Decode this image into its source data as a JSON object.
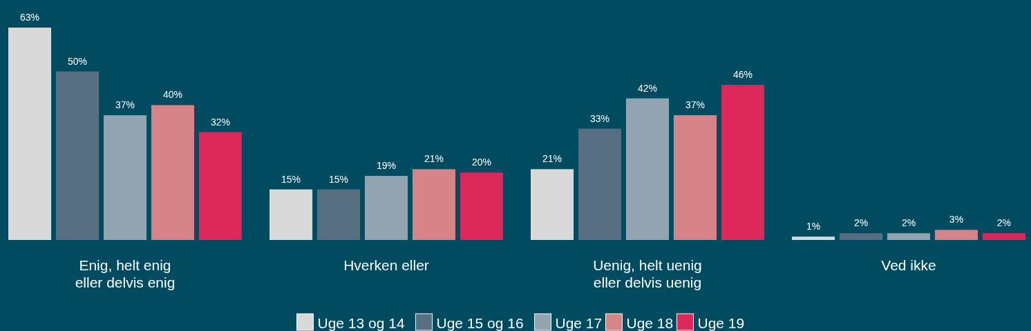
{
  "chart_data": {
    "type": "bar",
    "categories": [
      "Enig, helt enig eller delvis enig",
      "Hverken eller",
      "Uenig, helt uenig eller delvis uenig",
      "Ved ikke"
    ],
    "series": [
      {
        "name": "Uge 13 og 14",
        "color": "#d9d9d9",
        "values": [
          63,
          15,
          21,
          1
        ],
        "value_labels": [
          "63%",
          "15%",
          "21%",
          "1%"
        ]
      },
      {
        "name": "Uge 15 og 16",
        "color": "#566e80",
        "values": [
          50,
          15,
          33,
          2
        ],
        "value_labels": [
          "50%",
          "15%",
          "33%",
          "2%"
        ]
      },
      {
        "name": "Uge 17",
        "color": "#93a3af",
        "values": [
          37,
          19,
          42,
          2
        ],
        "value_labels": [
          "37%",
          "19%",
          "42%",
          "2%"
        ]
      },
      {
        "name": "Uge 18",
        "color": "#d68387",
        "values": [
          40,
          21,
          37,
          3
        ],
        "value_labels": [
          "40%",
          "21%",
          "37%",
          "3%"
        ]
      },
      {
        "name": "Uge 19",
        "color": "#dc275b",
        "values": [
          32,
          20,
          46,
          2
        ],
        "value_labels": [
          "32%",
          "20%",
          "46%",
          "2%"
        ]
      }
    ],
    "legend": "bottom",
    "grid": false
  }
}
